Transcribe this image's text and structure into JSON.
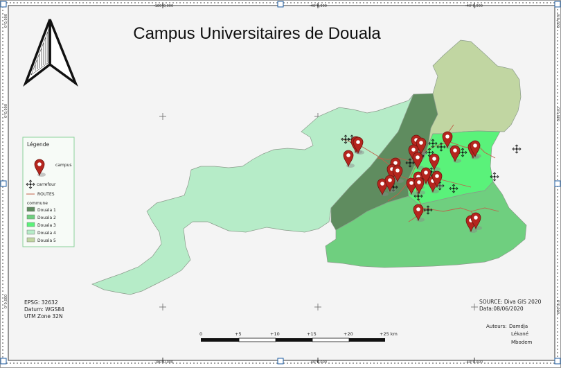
{
  "title": "Campus Universitaires de Douala",
  "frame_ticks": {
    "top": [
      "-180°0,000",
      "-40°0,000",
      "-40°0,000"
    ],
    "bottom": [
      "-180°0,000",
      "-40°0,000",
      "-40°0,000"
    ],
    "left": [
      "0°0,000",
      "0°0,000",
      "0°0,000"
    ],
    "right": [
      "0°0,000",
      "0°0,000",
      "0°0,000"
    ]
  },
  "legend": {
    "title": "Légende",
    "campus": "campus",
    "carrefour": "carrefour",
    "routes": "ROUTES",
    "commune_title": "commune",
    "communes": [
      {
        "label": "Douala 1",
        "color": "#5f8c5f"
      },
      {
        "label": "Douala 2",
        "color": "#6fcf7f"
      },
      {
        "label": "Douala 3",
        "color": "#5af27a"
      },
      {
        "label": "Douala 4",
        "color": "#b6ecc8"
      },
      {
        "label": "Douala 5",
        "color": "#c1d6a2"
      }
    ]
  },
  "crs": {
    "epsg": "EPSG: 32632",
    "datum": "Datum: WGS84",
    "utm": "UTM Zone 32N"
  },
  "source": {
    "line1": "SOURCE: Diva GIS 2020",
    "line2": "Data:08/06/2020"
  },
  "authors": {
    "label": "Auteurs:",
    "names": [
      "Damdja",
      "Lékané",
      "Mbodem"
    ]
  },
  "scale_bar": {
    "labels": [
      "0",
      "+5",
      "+10",
      "+15",
      "+20",
      "+25 km"
    ]
  },
  "colors": {
    "marker": "#b5261e",
    "road": "#c0604a",
    "frame": "#333333"
  }
}
